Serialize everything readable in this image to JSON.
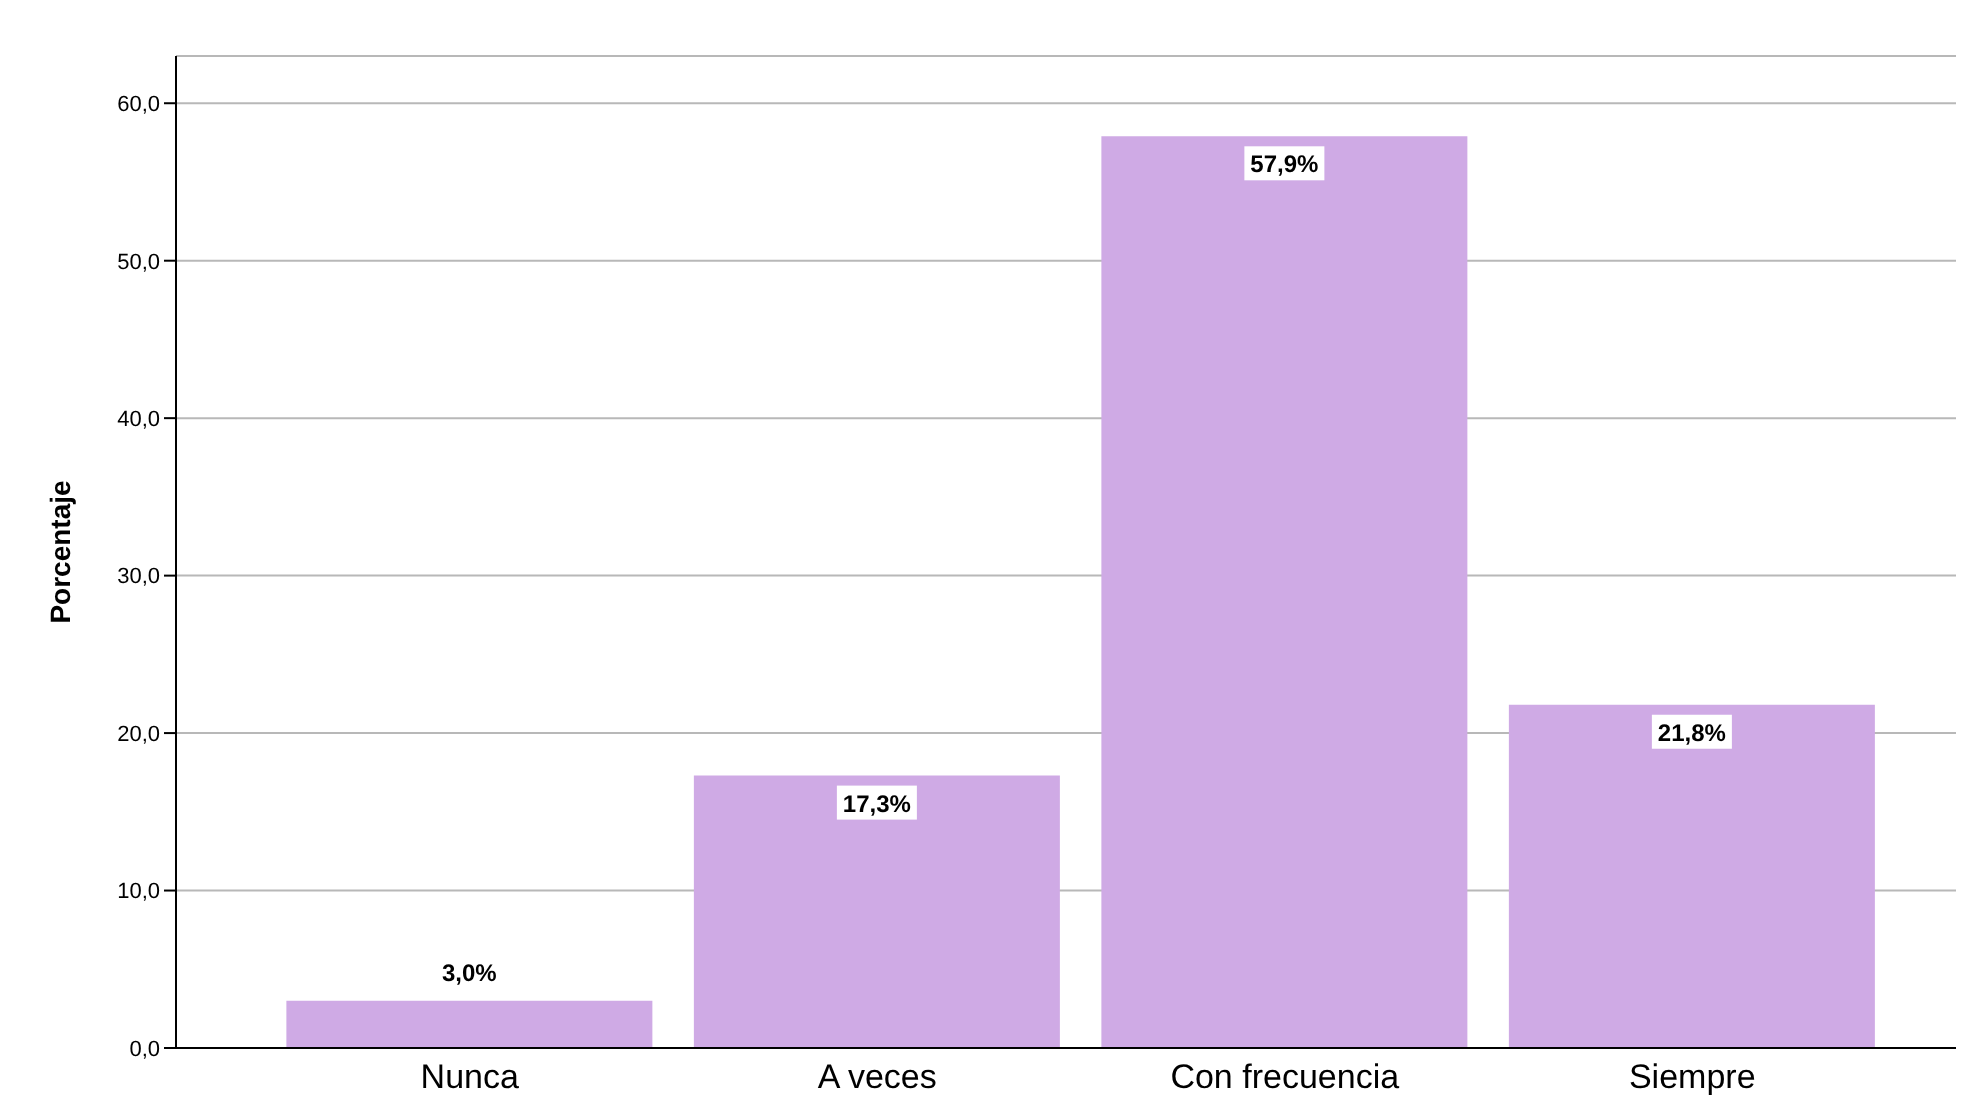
{
  "chart_data": {
    "type": "bar",
    "ylabel": "Porcentaje",
    "categories": [
      "Nunca",
      "A veces",
      "Con frecuencia",
      "Siempre"
    ],
    "values": [
      3.0,
      17.3,
      57.9,
      21.8
    ],
    "value_labels": [
      "3,0%",
      "17,3%",
      "57,9%",
      "21,8%"
    ],
    "color": "#cfaae5",
    "ylim": [
      0,
      63
    ],
    "yticks": [
      {
        "value": 0,
        "label": "0,0"
      },
      {
        "value": 10,
        "label": "10,0"
      },
      {
        "value": 20,
        "label": "20,0"
      },
      {
        "value": 30,
        "label": "30,0"
      },
      {
        "value": 40,
        "label": "40,0"
      },
      {
        "value": 50,
        "label": "50,0"
      },
      {
        "value": 60,
        "label": "60,0"
      }
    ],
    "grid": "y",
    "legend": false
  }
}
